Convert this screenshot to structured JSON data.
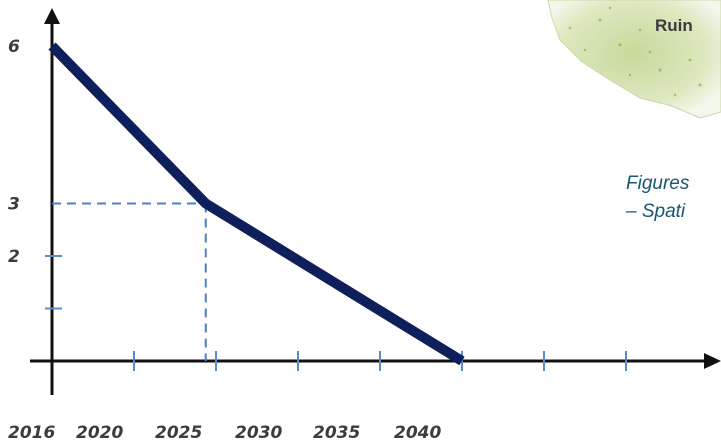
{
  "chart_data": {
    "type": "line",
    "title": "",
    "xlabel": "",
    "ylabel": "",
    "x_tick_labels": [
      "2016",
      "2020",
      "2025",
      "2030",
      "2035",
      "2040"
    ],
    "y_tick_labels": [
      "6",
      "3",
      "2"
    ],
    "series": [
      {
        "x": [
          2016,
          2025,
          2040
        ],
        "y": [
          6,
          3,
          0
        ]
      }
    ],
    "reference_point": {
      "x": 2025,
      "y": 3
    },
    "xlim": [
      2016,
      2040
    ],
    "ylim": [
      0,
      6
    ],
    "grid": false,
    "colors": {
      "line": "#0e1f5c",
      "axis": "#111111",
      "ticks": "#5b8bc9",
      "guide": "#4f7fc4"
    }
  },
  "annotations": {
    "caption_lines": [
      "Figures",
      "– Spati"
    ],
    "map_label": "Ruin"
  }
}
